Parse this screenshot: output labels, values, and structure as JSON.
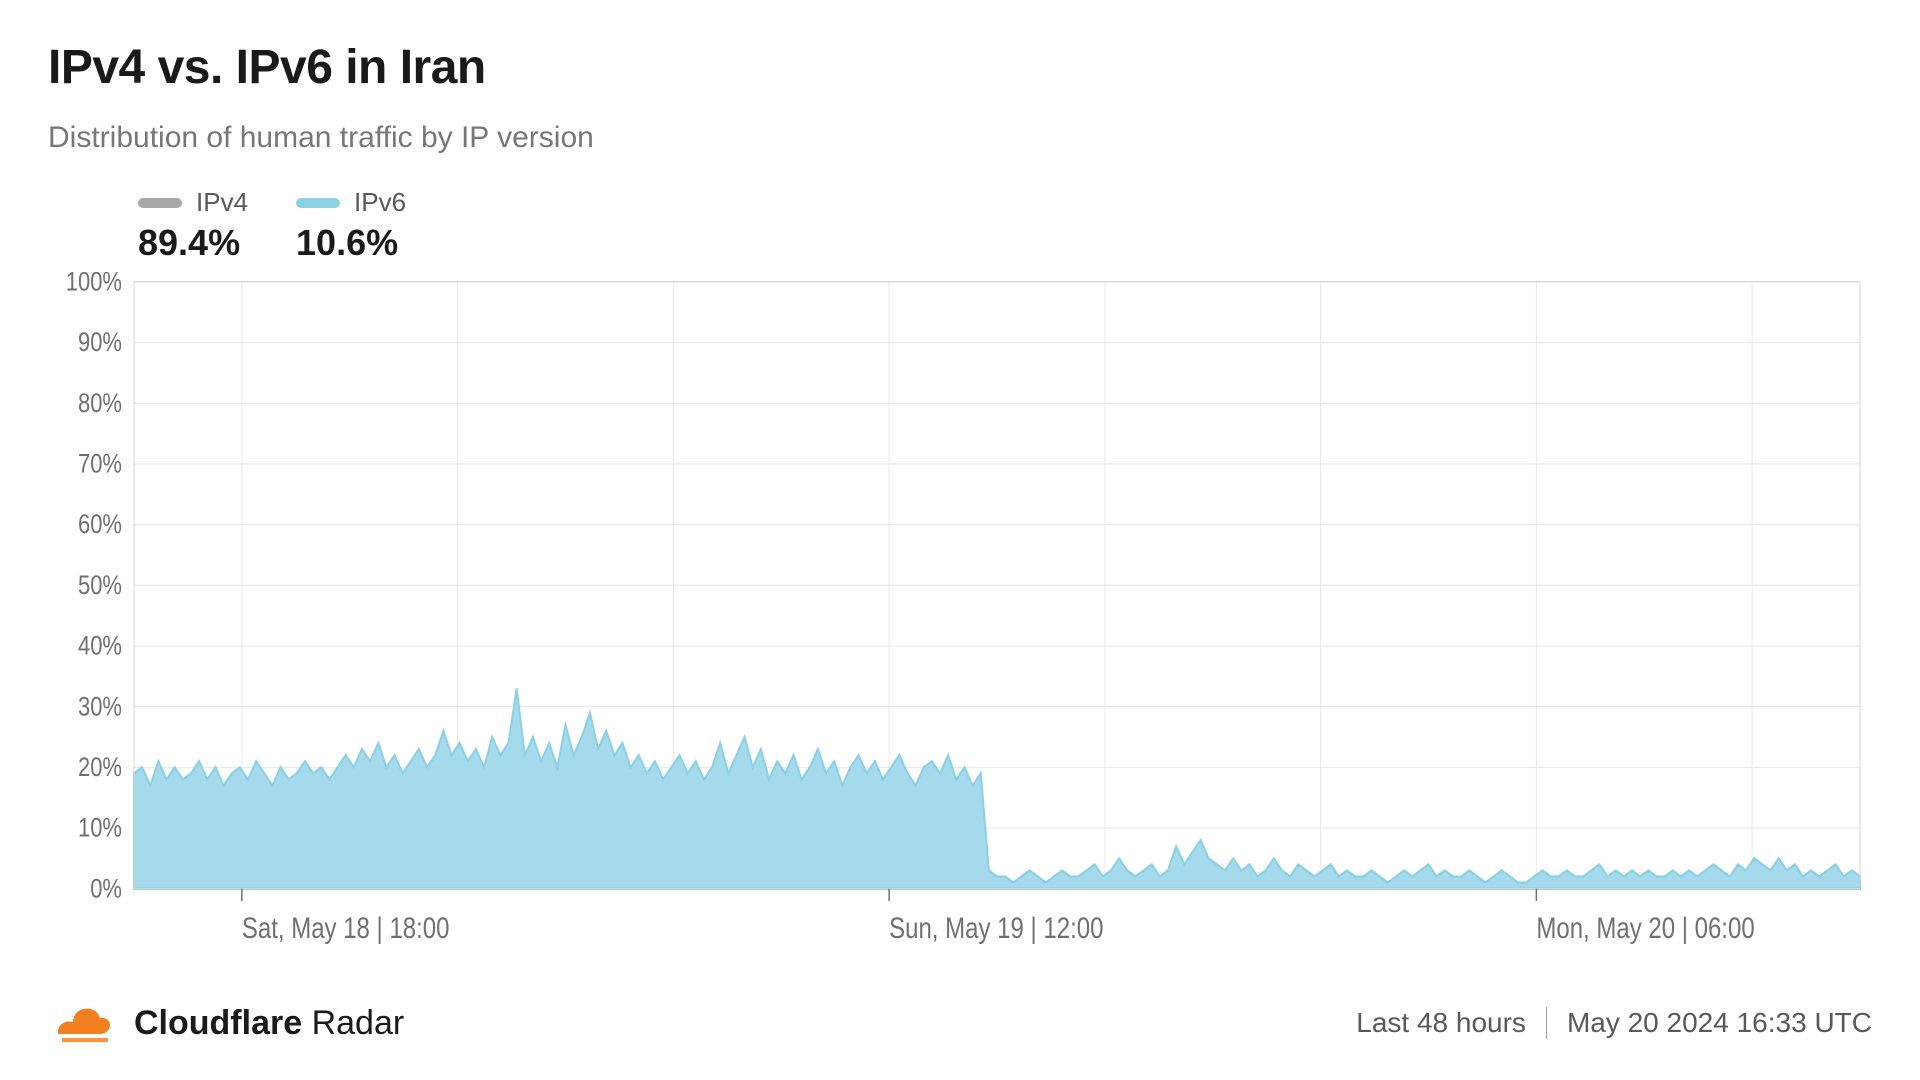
{
  "title": "IPv4 vs. IPv6 in Iran",
  "subtitle": "Distribution of human traffic by IP version",
  "legend": {
    "items": [
      {
        "label": "IPv4",
        "value": "89.4%",
        "color": "#a8a8a8"
      },
      {
        "label": "IPv6",
        "value": "10.6%",
        "color": "#8cd0e5"
      }
    ]
  },
  "chart": {
    "type": "area",
    "background_color": "#ffffff",
    "plot_border_color": "#d6d6d6",
    "grid_color": "#e9e9e9",
    "axis_label_color": "#707070",
    "axis_font_size": 22,
    "y": {
      "min": 0,
      "max": 100,
      "tick_step": 10,
      "ticks": [
        0,
        10,
        20,
        30,
        40,
        50,
        60,
        70,
        80,
        90,
        100
      ],
      "tick_labels": [
        "0%",
        "10%",
        "20%",
        "30%",
        "40%",
        "50%",
        "60%",
        "70%",
        "80%",
        "90%",
        "100%"
      ]
    },
    "x": {
      "min": 0,
      "max": 48,
      "tick_positions_hours": [
        3,
        21,
        39
      ],
      "tick_labels": [
        "Sat, May 18 | 18:00",
        "Sun, May 19 | 12:00",
        "Mon, May 20 | 06:00"
      ],
      "vgrid_hours": [
        3,
        9,
        15,
        21,
        27,
        33,
        39,
        45
      ]
    },
    "series": {
      "name": "IPv6",
      "fill_color": "#a4daec",
      "stroke_color": "#8cd0e5",
      "stroke_width": 2,
      "fill_opacity": 1.0,
      "values_pct": [
        19,
        20,
        17,
        21,
        18,
        20,
        18,
        19,
        21,
        18,
        20,
        17,
        19,
        20,
        18,
        21,
        19,
        17,
        20,
        18,
        19,
        21,
        19,
        20,
        18,
        20,
        22,
        20,
        23,
        21,
        24,
        20,
        22,
        19,
        21,
        23,
        20,
        22,
        26,
        22,
        24,
        21,
        23,
        20,
        25,
        22,
        24,
        33,
        22,
        25,
        21,
        24,
        20,
        27,
        22,
        25,
        29,
        23,
        26,
        22,
        24,
        20,
        22,
        19,
        21,
        18,
        20,
        22,
        19,
        21,
        18,
        20,
        24,
        19,
        22,
        25,
        20,
        23,
        18,
        21,
        19,
        22,
        18,
        20,
        23,
        19,
        21,
        17,
        20,
        22,
        19,
        21,
        18,
        20,
        22,
        19,
        17,
        20,
        21,
        19,
        22,
        18,
        20,
        17,
        19,
        3,
        2,
        2,
        1,
        2,
        3,
        2,
        1,
        2,
        3,
        2,
        2,
        3,
        4,
        2,
        3,
        5,
        3,
        2,
        3,
        4,
        2,
        3,
        7,
        4,
        6,
        8,
        5,
        4,
        3,
        5,
        3,
        4,
        2,
        3,
        5,
        3,
        2,
        4,
        3,
        2,
        3,
        4,
        2,
        3,
        2,
        2,
        3,
        2,
        1,
        2,
        3,
        2,
        3,
        4,
        2,
        3,
        2,
        2,
        3,
        2,
        1,
        2,
        3,
        2,
        1,
        1,
        2,
        3,
        2,
        2,
        3,
        2,
        2,
        3,
        4,
        2,
        3,
        2,
        3,
        2,
        3,
        2,
        2,
        3,
        2,
        3,
        2,
        3,
        4,
        3,
        2,
        4,
        3,
        5,
        4,
        3,
        5,
        3,
        4,
        2,
        3,
        2,
        3,
        4,
        2,
        3,
        2
      ]
    }
  },
  "footer": {
    "brand_bold": "Cloudflare",
    "brand_regular": "Radar",
    "brand_color": "#f38020",
    "timerange": "Last 48 hours",
    "timestamp": "May 20 2024 16:33 UTC",
    "text_color": "#595959"
  }
}
